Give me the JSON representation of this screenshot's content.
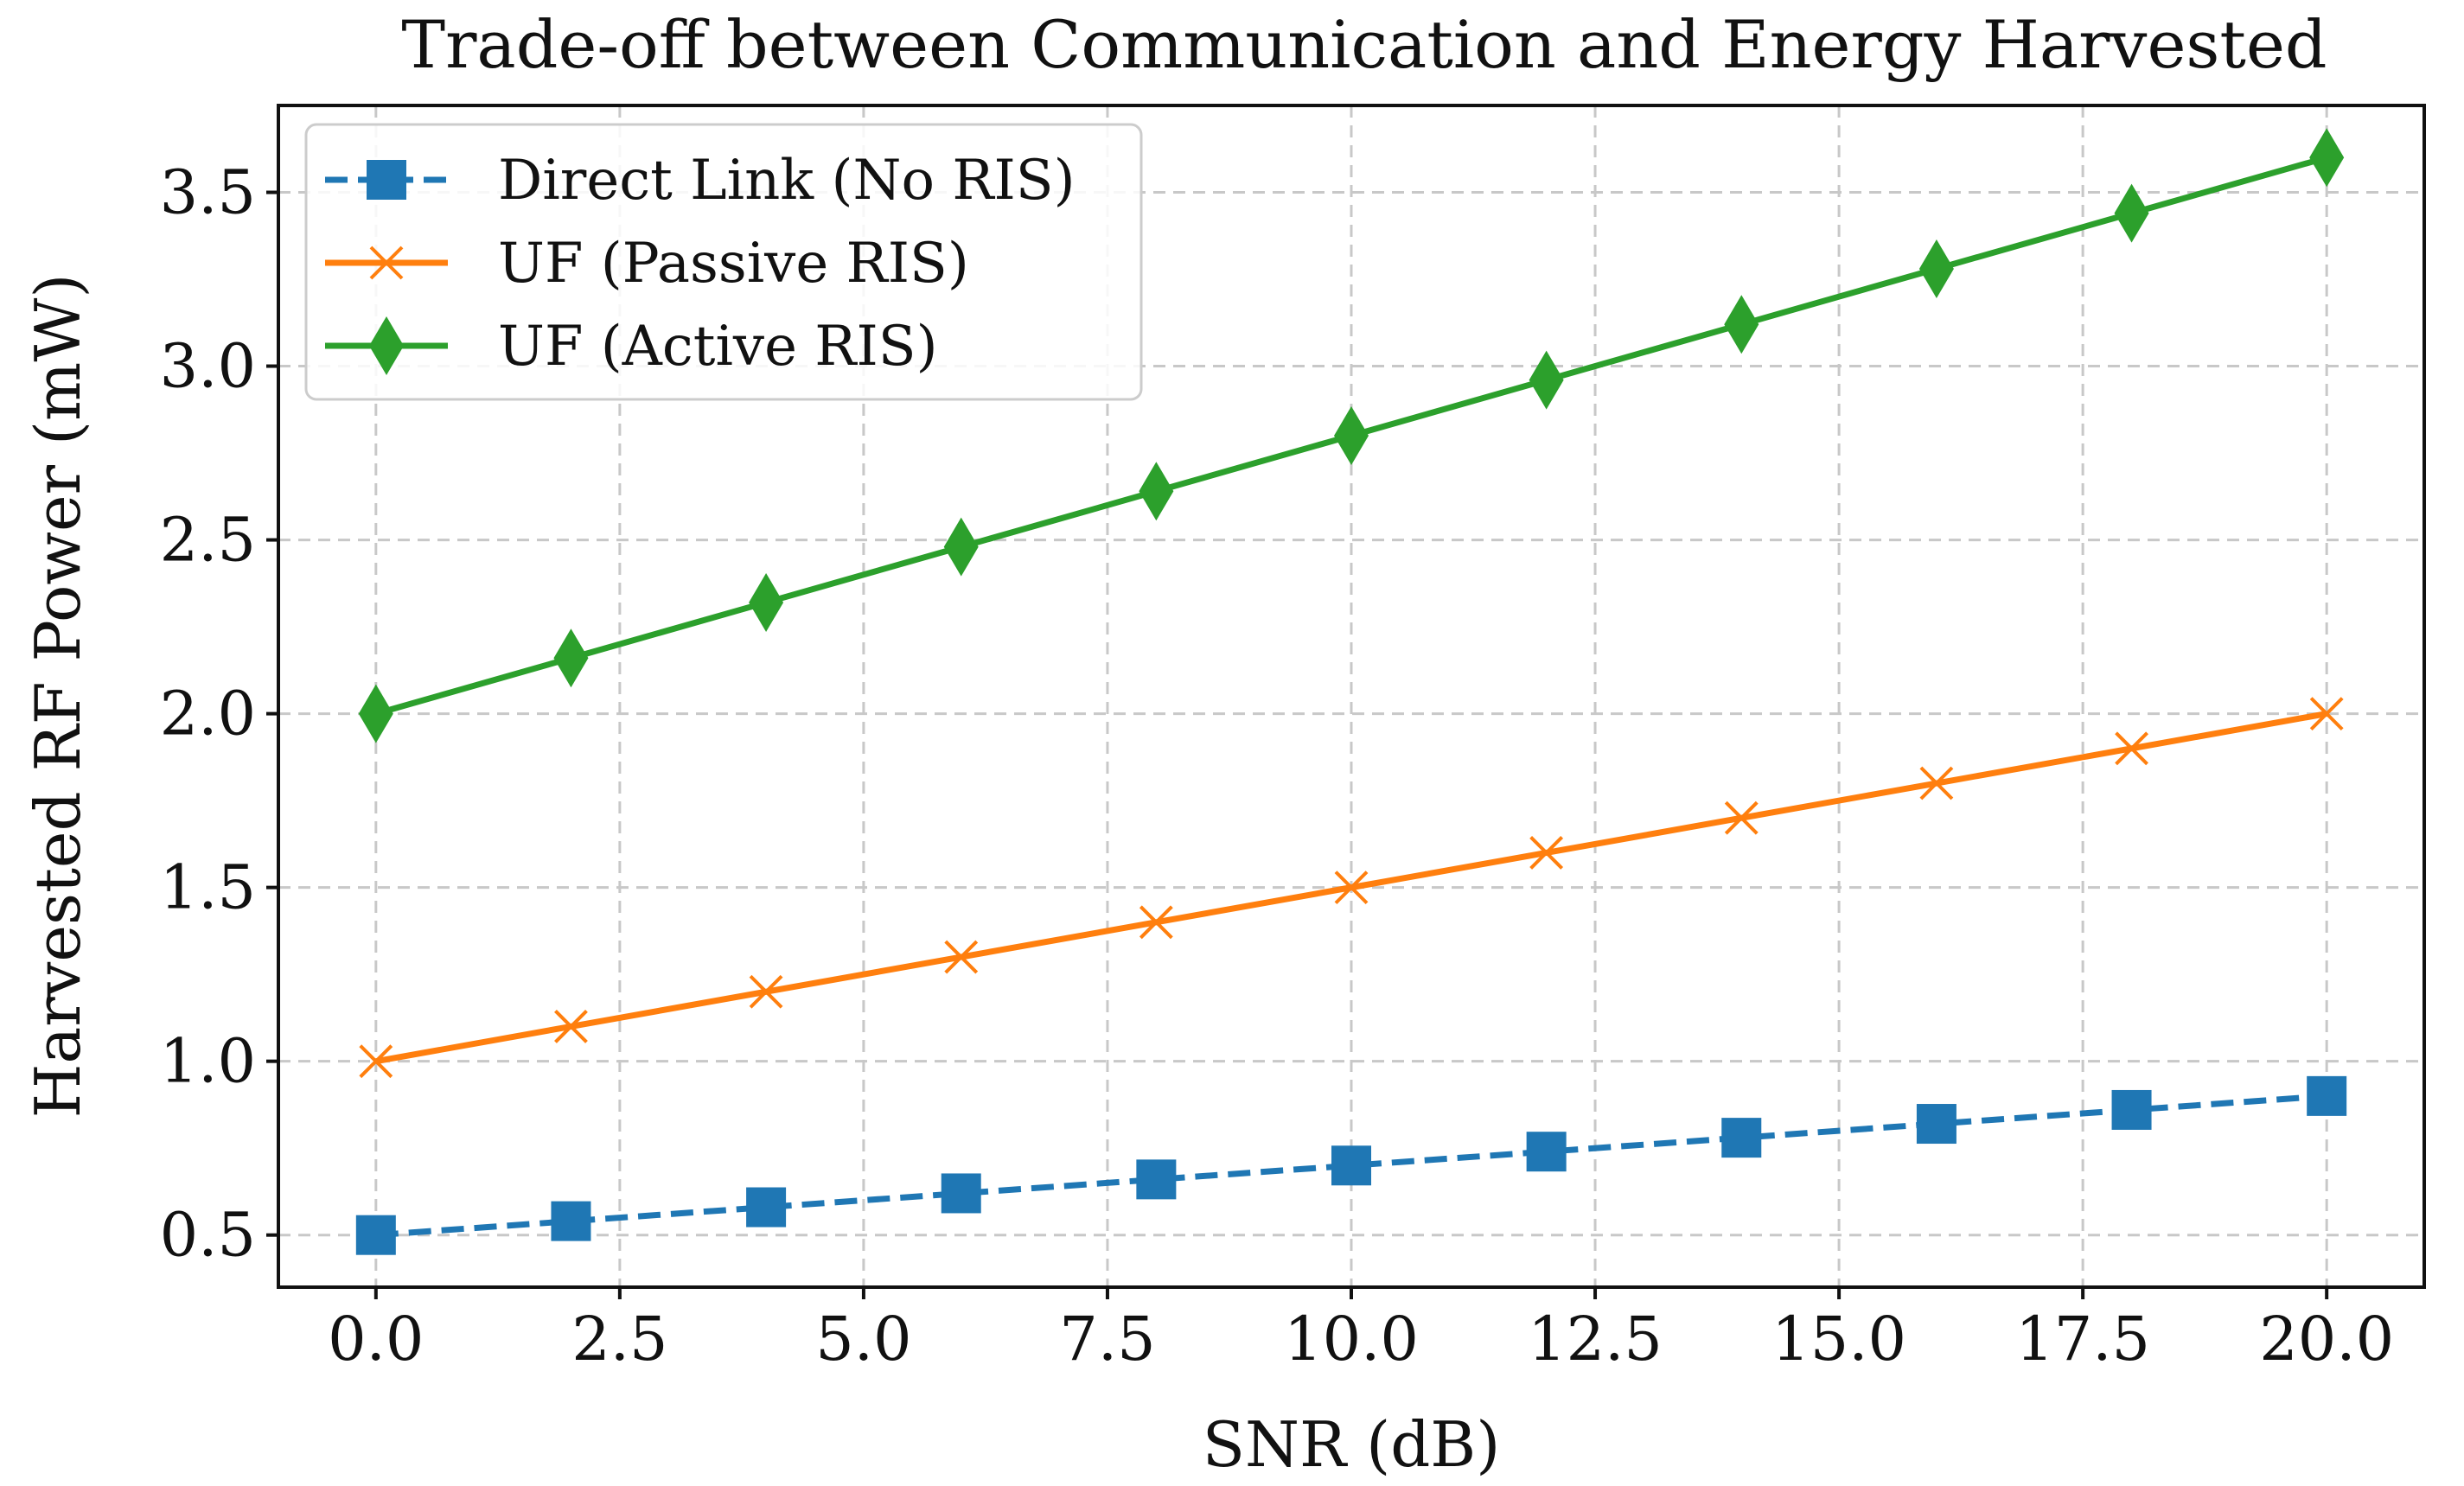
{
  "chart_data": {
    "type": "line",
    "title": "Trade-off between Communication and Energy Harvested",
    "xlabel": "SNR (dB)",
    "ylabel": "Harvested RF Power (mW)",
    "xlim": [
      -1,
      21
    ],
    "ylim": [
      0.35,
      3.75
    ],
    "x": [
      0,
      2,
      4,
      6,
      8,
      10,
      12,
      14,
      16,
      18,
      20
    ],
    "xticks": [
      0,
      2.5,
      5,
      7.5,
      10,
      12.5,
      15,
      17.5,
      20
    ],
    "xtick_labels": [
      "0.0",
      "2.5",
      "5.0",
      "7.5",
      "10.0",
      "12.5",
      "15.0",
      "17.5",
      "20.0"
    ],
    "yticks": [
      0.5,
      1.0,
      1.5,
      2.0,
      2.5,
      3.0,
      3.5
    ],
    "ytick_labels": [
      "0.5",
      "1.0",
      "1.5",
      "2.0",
      "2.5",
      "3.0",
      "3.5"
    ],
    "grid": true,
    "legend_position": "top-left",
    "series": [
      {
        "name": "Direct Link (No RIS)",
        "color": "#1f77b4",
        "marker": "square",
        "linestyle": "dashed",
        "values": [
          0.5,
          0.54,
          0.58,
          0.62,
          0.66,
          0.7,
          0.74,
          0.78,
          0.82,
          0.86,
          0.9
        ]
      },
      {
        "name": "UF (Passive RIS)",
        "color": "#ff7f0e",
        "marker": "x",
        "linestyle": "solid",
        "values": [
          1.0,
          1.1,
          1.2,
          1.3,
          1.4,
          1.5,
          1.6,
          1.7,
          1.8,
          1.9,
          2.0
        ]
      },
      {
        "name": "UF (Active RIS)",
        "color": "#2ca02c",
        "marker": "diamond",
        "linestyle": "solid",
        "values": [
          2.0,
          2.16,
          2.32,
          2.48,
          2.64,
          2.8,
          2.96,
          3.12,
          3.28,
          3.44,
          3.6
        ]
      }
    ]
  }
}
